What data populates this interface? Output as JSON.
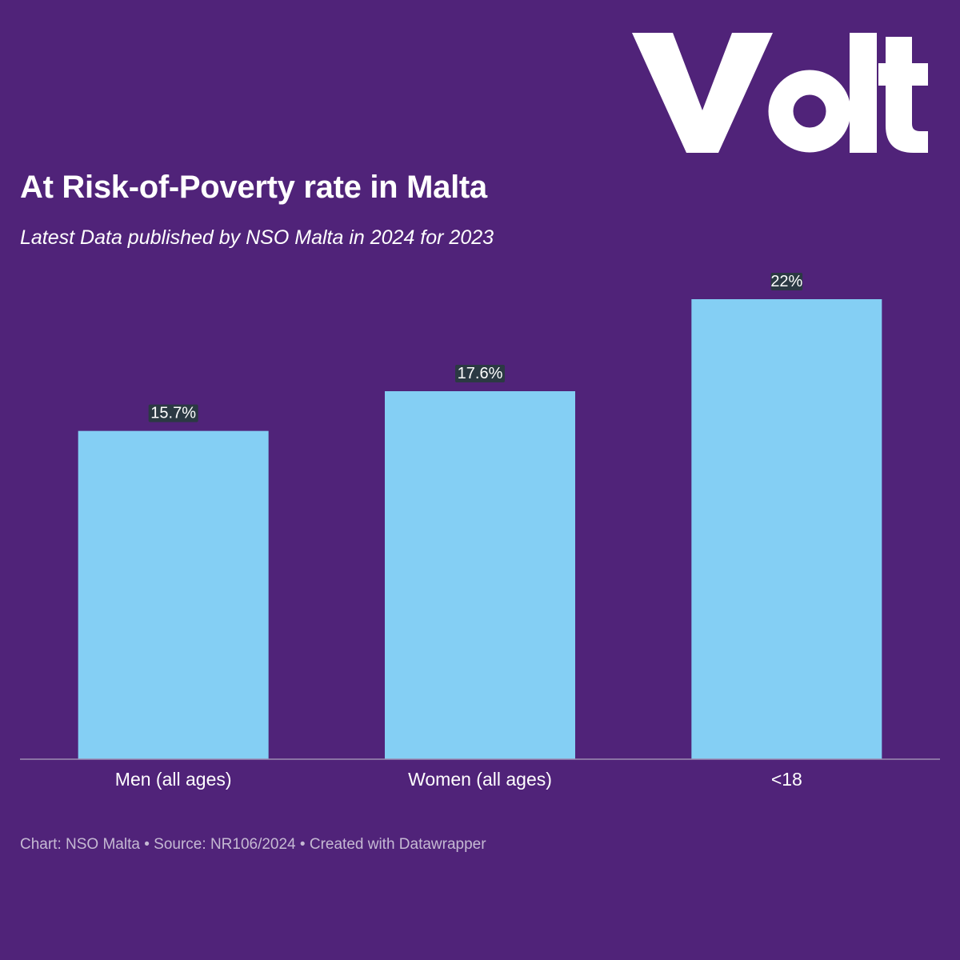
{
  "brand": {
    "logo_text": "Volt",
    "background": "#502379",
    "bar_color": "#84cff4",
    "text_color": "#ffffff",
    "footer_color": "#c5b9d3",
    "axis_color": "#9d8cb2"
  },
  "chart_data": {
    "type": "bar",
    "title": "At Risk-of-Poverty rate in Malta",
    "subtitle": "Latest Data published by NSO Malta in 2024 for 2023",
    "categories": [
      "Men (all ages)",
      "Women (all ages)",
      "<18"
    ],
    "values": [
      15.7,
      17.6,
      22
    ],
    "value_labels": [
      "15.7%",
      "17.6%",
      "22%"
    ],
    "unit": "%",
    "ylim": [
      0,
      22
    ],
    "grid": false,
    "legend": "none"
  },
  "footer": {
    "chart_credit_label": "Chart:",
    "chart_credit": "NSO Malta",
    "separator": "•",
    "source_label": "Source:",
    "source": "NR106/2024",
    "created_with": "Created with Datawrapper"
  }
}
